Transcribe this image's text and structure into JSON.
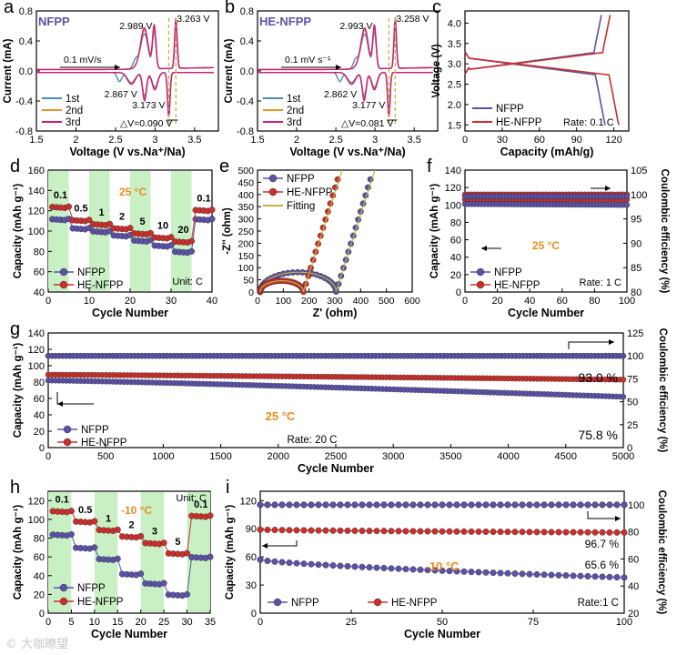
{
  "colors": {
    "nfpp": "#5b52a8",
    "henfpp": "#c9302c",
    "cv1": "#4f8fa8",
    "cv2": "#e8932b",
    "cv3": "#c81d7a",
    "green": "#c9f0c4",
    "orange": "#ea8b1f",
    "olive": "#c6b23a"
  },
  "watermark": "© 大咖瞭望",
  "chart_data": [
    {
      "id": "a",
      "panel_label": "a",
      "type": "line",
      "title": "NFPP",
      "xlabel": "Voltage (V vs.Na⁺/Na)",
      "ylabel": "Current (mA)",
      "xlim": [
        1.5,
        3.8
      ],
      "ylim": [
        -0.8,
        0.8
      ],
      "xticks": [
        1.5,
        2.0,
        2.5,
        3.0,
        3.5
      ],
      "yticks": [
        -0.8,
        -0.4,
        0.0,
        0.4,
        0.8
      ],
      "series": [
        {
          "name": "1st",
          "color": "#4f8fa8"
        },
        {
          "name": "2nd",
          "color": "#e8932b"
        },
        {
          "name": "3rd",
          "color": "#c81d7a"
        }
      ],
      "annotations": [
        "2.989 V",
        "3.263 V",
        "2.867 V",
        "3.173 V",
        "△V=0.090 V",
        "0.1 mV/s"
      ],
      "peaks": {
        "ox": [
          2.989,
          3.263
        ],
        "red": [
          2.867,
          3.173
        ]
      }
    },
    {
      "id": "b",
      "panel_label": "b",
      "type": "line",
      "title": "HE-NFPP",
      "xlabel": "Voltage (V vs.Na⁺/Na)",
      "ylabel": "Current (mA)",
      "xlim": [
        1.5,
        3.8
      ],
      "ylim": [
        -0.8,
        0.8
      ],
      "xticks": [
        1.5,
        2.0,
        2.5,
        3.0,
        3.5
      ],
      "yticks": [
        -0.8,
        -0.4,
        0.0,
        0.4,
        0.8
      ],
      "series": [
        {
          "name": "1st",
          "color": "#4f8fa8"
        },
        {
          "name": "2nd",
          "color": "#e8932b"
        },
        {
          "name": "3rd",
          "color": "#c81d7a"
        }
      ],
      "annotations": [
        "2.993 V",
        "3.258 V",
        "2.862 V",
        "3.177 V",
        "△V=0.081 V",
        "0.1 mV s⁻¹"
      ],
      "peaks": {
        "ox": [
          2.993,
          3.258
        ],
        "red": [
          2.862,
          3.177
        ]
      }
    },
    {
      "id": "c",
      "panel_label": "c",
      "type": "line",
      "xlabel": "Capacity (mAh/g)",
      "ylabel": "Voltage (V)",
      "xlim": [
        0,
        132
      ],
      "ylim": [
        1.35,
        4.3
      ],
      "xticks": [
        0,
        30,
        60,
        90,
        120
      ],
      "yticks": [
        1.5,
        2.0,
        2.5,
        3.0,
        3.5,
        4.0
      ],
      "series": [
        {
          "name": "NFPP",
          "color": "#5b52a8"
        },
        {
          "name": "HE-NFPP",
          "color": "#c9302c"
        }
      ],
      "annotations": [
        "Rate: 0.1 C"
      ]
    },
    {
      "id": "d",
      "panel_label": "d",
      "type": "scatter",
      "xlabel": "Cycle Number",
      "ylabel": "Capacity (mAh g⁻¹)",
      "xlim": [
        0,
        40
      ],
      "ylim": [
        40,
        160
      ],
      "xticks": [
        0,
        10,
        20,
        30,
        40
      ],
      "yticks": [
        40,
        60,
        80,
        100,
        120,
        140,
        160
      ],
      "series": [
        {
          "name": "NFPP",
          "color": "#5b52a8"
        },
        {
          "name": "HE-NFPP",
          "color": "#c9302c"
        }
      ],
      "annotations": [
        "25 °C",
        "Unit: C"
      ],
      "rates": [
        "0.1",
        "0.5",
        "1",
        "2",
        "5",
        "10",
        "20",
        "0.1"
      ],
      "steps": {
        "NFPP": [
          112,
          103,
          100,
          96,
          91,
          86,
          80,
          112
        ],
        "HE-NFPP": [
          124,
          111,
          107,
          103,
          98,
          94,
          90,
          121
        ]
      }
    },
    {
      "id": "e",
      "panel_label": "e",
      "type": "scatter",
      "xlabel": "Z' (ohm)",
      "ylabel": "-Z'' (ohm)",
      "xlim": [
        0,
        600
      ],
      "ylim": [
        0,
        500
      ],
      "xticks": [
        0,
        100,
        200,
        300,
        400,
        500,
        600
      ],
      "yticks": [
        0,
        50,
        100,
        150,
        200,
        250,
        300,
        350,
        400,
        450,
        500
      ],
      "series": [
        {
          "name": "NFPP",
          "color": "#5b52a8"
        },
        {
          "name": "HE-NFPP",
          "color": "#c9302c"
        },
        {
          "name": "Fitting",
          "color": "#c6b23a"
        }
      ],
      "nyquist": {
        "NFPP": {
          "r0": 10,
          "r1": 305
        },
        "HE-NFPP": {
          "r0": 10,
          "r1": 178
        }
      }
    },
    {
      "id": "f",
      "panel_label": "f",
      "type": "scatter",
      "xlabel": "Cycle Number",
      "ylabel": "Capacity (mAh g⁻¹)",
      "y2label": "Coulombic efficiency (%)",
      "xlim": [
        0,
        100
      ],
      "ylim": [
        0,
        140
      ],
      "y2lim": [
        80,
        105
      ],
      "xticks": [
        0,
        20,
        40,
        60,
        80,
        100
      ],
      "yticks": [
        0,
        20,
        40,
        60,
        80,
        100,
        120,
        140
      ],
      "y2ticks": [
        80,
        85,
        90,
        95,
        100,
        105
      ],
      "series": [
        {
          "name": "NFPP",
          "color": "#5b52a8"
        },
        {
          "name": "HE-NFPP",
          "color": "#c9302c"
        }
      ],
      "annotations": [
        "25 °C",
        "Rate: 1 C"
      ],
      "capacity": {
        "NFPP": [
          101,
          100
        ],
        "HE-NFPP": [
          106,
          106
        ]
      },
      "ce": {
        "NFPP": 99.6,
        "HE-NFPP": 100.0
      }
    },
    {
      "id": "g",
      "panel_label": "g",
      "type": "scatter",
      "xlabel": "Cycle Number",
      "ylabel": "Capacity (mAh g⁻¹)",
      "y2label": "Coulombic efficiency (%)",
      "xlim": [
        0,
        5000
      ],
      "ylim": [
        0,
        140
      ],
      "y2lim": [
        0,
        125
      ],
      "xticks": [
        0,
        500,
        1000,
        1500,
        2000,
        2500,
        3000,
        3500,
        4000,
        4500,
        5000
      ],
      "yticks": [
        0,
        20,
        40,
        60,
        80,
        100,
        120,
        140
      ],
      "y2ticks": [
        0,
        25,
        50,
        75,
        100,
        125
      ],
      "series": [
        {
          "name": "NFPP",
          "color": "#5b52a8"
        },
        {
          "name": "HE-NFPP",
          "color": "#c9302c"
        }
      ],
      "annotations": [
        "25 °C",
        "Rate: 20 C",
        "93.0 %",
        "75.8 %"
      ],
      "capacity": {
        "NFPP": [
          82,
          62
        ],
        "HE-NFPP": [
          89,
          83
        ]
      },
      "ce": {
        "NFPP": 100,
        "HE-NFPP": 100
      }
    },
    {
      "id": "h",
      "panel_label": "h",
      "type": "scatter",
      "xlabel": "Cycle Number",
      "ylabel": "Capacity (mAh g⁻¹)",
      "xlim": [
        0,
        35
      ],
      "ylim": [
        0,
        130
      ],
      "xticks": [
        0,
        5,
        10,
        15,
        20,
        25,
        30,
        35
      ],
      "yticks": [
        0,
        20,
        40,
        60,
        80,
        100,
        120
      ],
      "series": [
        {
          "name": "NFPP",
          "color": "#5b52a8"
        },
        {
          "name": "HE-NFPP",
          "color": "#c9302c"
        }
      ],
      "annotations": [
        "-10 °C",
        "Unit: C"
      ],
      "rates": [
        "0.1",
        "0.5",
        "1",
        "2",
        "3",
        "5",
        "0.1"
      ],
      "steps": {
        "NFPP": [
          84,
          70,
          58,
          42,
          32,
          20,
          60
        ],
        "HE-NFPP": [
          109,
          98,
          89,
          82,
          75,
          64,
          104
        ]
      }
    },
    {
      "id": "i",
      "panel_label": "i",
      "type": "scatter",
      "xlabel": "Cycle Number",
      "ylabel": "Capacity (mAh g⁻¹)",
      "y2label": "Coulombic efficiency (%)",
      "xlim": [
        0,
        100
      ],
      "ylim": [
        0,
        130
      ],
      "y2lim": [
        20,
        110
      ],
      "xticks": [
        0,
        25,
        50,
        75,
        100
      ],
      "yticks": [
        0,
        30,
        60,
        90,
        120
      ],
      "y2ticks": [
        20,
        40,
        60,
        80,
        100
      ],
      "series": [
        {
          "name": "NFPP",
          "color": "#5b52a8"
        },
        {
          "name": "HE-NFPP",
          "color": "#c9302c"
        }
      ],
      "annotations": [
        "-10 °C",
        "Rate:1 C",
        "96.7 %",
        "65.6 %"
      ],
      "capacity": {
        "NFPP": [
          57,
          38
        ],
        "HE-NFPP": [
          89,
          86
        ]
      },
      "ce": {
        "NFPP": 100,
        "HE-NFPP": 100
      }
    }
  ]
}
